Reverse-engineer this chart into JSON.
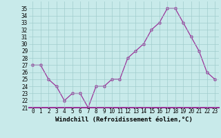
{
  "x": [
    0,
    1,
    2,
    3,
    4,
    5,
    6,
    7,
    8,
    9,
    10,
    11,
    12,
    13,
    14,
    15,
    16,
    17,
    18,
    19,
    20,
    21,
    22,
    23
  ],
  "y": [
    27,
    27,
    25,
    24,
    22,
    23,
    23,
    21,
    24,
    24,
    25,
    25,
    28,
    29,
    30,
    32,
    33,
    35,
    35,
    33,
    31,
    29,
    26,
    25
  ],
  "line_color": "#993399",
  "marker": "D",
  "markersize": 2.5,
  "linewidth": 0.9,
  "bg_color": "#c8eaea",
  "grid_color": "#a0cccc",
  "xlabel": "Windchill (Refroidissement éolien,°C)",
  "xlabel_fontsize": 6.5,
  "tick_fontsize": 5.5,
  "ylim": [
    21,
    36
  ],
  "yticks": [
    21,
    22,
    23,
    24,
    25,
    26,
    27,
    28,
    29,
    30,
    31,
    32,
    33,
    34,
    35
  ],
  "xticks": [
    0,
    1,
    2,
    3,
    4,
    5,
    6,
    7,
    8,
    9,
    10,
    11,
    12,
    13,
    14,
    15,
    16,
    17,
    18,
    19,
    20,
    21,
    22,
    23
  ],
  "spine_color": "#993399"
}
